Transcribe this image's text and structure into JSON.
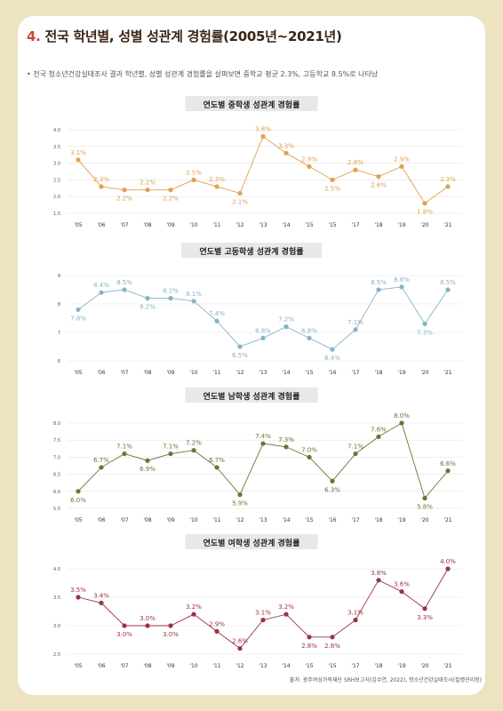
{
  "page": {
    "title_num": "4.",
    "title_rest": "전국 학년별, 성별 성관계 경험률(2005년~2021년)",
    "subtitle": "• 전국 청소년건강실태조사 결과 학년별, 성별 성관계 경험률을 살펴보면 중학교 평균 2.3%, 고등학교 8.5%로 나타남",
    "source": "출처: 광주여성가족재단 SRH보고서(김수연, 2022), 청소년건강실태조사(질병관리청)"
  },
  "chart_data": [
    {
      "type": "line",
      "title": "연도별 중학생 성관계 경험률",
      "categories": [
        "'05",
        "'06",
        "'07",
        "'08",
        "'09",
        "'10",
        "'11",
        "'12",
        "'13",
        "'14",
        "'15",
        "'15",
        "'17",
        "'18",
        "'19",
        "'20",
        "'21"
      ],
      "values": [
        3.1,
        2.3,
        2.2,
        2.2,
        2.2,
        2.5,
        2.3,
        2.1,
        3.8,
        3.3,
        2.9,
        2.5,
        2.8,
        2.6,
        2.9,
        1.8,
        2.3
      ],
      "labels": [
        "3.1%",
        "2.3%",
        "2.2%",
        "2.2%",
        "2.2%",
        "2.5%",
        "2.3%",
        "2.1%",
        "3.8%",
        "3.3%",
        "2.9%",
        "2.5%",
        "2.8%",
        "2.6%",
        "2.9%",
        "1.8%",
        "2.3%"
      ],
      "yticks": [
        "4.0",
        "3.5",
        "3.0",
        "2.5",
        "2.0",
        "1.5"
      ],
      "ylim": [
        1.5,
        4.0
      ],
      "color": "#e0a050"
    },
    {
      "type": "line",
      "title": "연도별 고등학생 성관계 경험률",
      "categories": [
        "'05",
        "'06",
        "'07",
        "'08",
        "'09",
        "'10",
        "'11",
        "'12",
        "'13",
        "'14",
        "'15",
        "'16",
        "'17",
        "'18",
        "'19",
        "'20",
        "'21"
      ],
      "values": [
        7.8,
        8.4,
        8.5,
        8.2,
        8.2,
        8.1,
        7.4,
        6.5,
        6.8,
        7.2,
        6.8,
        6.4,
        7.1,
        8.5,
        8.6,
        7.3,
        8.5
      ],
      "labels": [
        "7.8%",
        "8.4%",
        "8.5%",
        "8.2%",
        "8.2%",
        "8.1%",
        "7.4%",
        "6.5%",
        "6.8%",
        "7.2%",
        "6.8%",
        "6.4%",
        "7.1%",
        "8.5%",
        "8.6%",
        "7.3%",
        "8.5%"
      ],
      "yticks": [
        "9",
        "8",
        "7",
        "6"
      ],
      "ylim": [
        6,
        9
      ],
      "color": "#86b3c6"
    },
    {
      "type": "line",
      "title": "연도별 남학생 성관계 경험률",
      "categories": [
        "'05",
        "'06",
        "'07",
        "'08",
        "'09",
        "'10",
        "'11",
        "'12",
        "'13",
        "'14",
        "'15",
        "'16",
        "'17",
        "'18",
        "'19",
        "'20",
        "'21"
      ],
      "values": [
        6.0,
        6.7,
        7.1,
        6.9,
        7.1,
        7.2,
        6.7,
        5.9,
        7.4,
        7.3,
        7.0,
        6.3,
        7.1,
        7.6,
        8.0,
        5.8,
        6.6
      ],
      "labels": [
        "6.0%",
        "6.7%",
        "7.1%",
        "6.9%",
        "7.1%",
        "7.2%",
        "6.7%",
        "5.9%",
        "7.4%",
        "7.3%",
        "7.0%",
        "6.3%",
        "7.1%",
        "7.6%",
        "8.0%",
        "5.8%",
        "6.6%"
      ],
      "yticks": [
        "8.0",
        "7.5",
        "7.0",
        "6.5",
        "6.0",
        "5.5"
      ],
      "ylim": [
        5.5,
        8.0
      ],
      "color": "#6b7431"
    },
    {
      "type": "line",
      "title": "연도별 여학생 성관계 경험률",
      "categories": [
        "'05",
        "'06",
        "'07",
        "'08",
        "'09",
        "'10",
        "'11",
        "'12",
        "'13",
        "'14",
        "'15",
        "'15",
        "'17",
        "'18",
        "'19",
        "'20",
        "'21"
      ],
      "values": [
        3.5,
        3.4,
        3.0,
        3.0,
        3.0,
        3.2,
        2.9,
        2.6,
        3.1,
        3.2,
        2.8,
        2.8,
        3.1,
        3.8,
        3.6,
        3.3,
        4.0
      ],
      "labels": [
        "3.5%",
        "3.4%",
        "3.0%",
        "3.0%",
        "3.0%",
        "3.2%",
        "2.9%",
        "2.6%",
        "3.1%",
        "3.2%",
        "2.8%",
        "2.8%",
        "3.1%",
        "3.8%",
        "3.6%",
        "3.3%",
        "4.0%"
      ],
      "yticks": [
        "4.0",
        "3.5",
        "3.0",
        "2.5"
      ],
      "ylim": [
        2.5,
        4.0
      ],
      "color": "#9c3242"
    }
  ]
}
